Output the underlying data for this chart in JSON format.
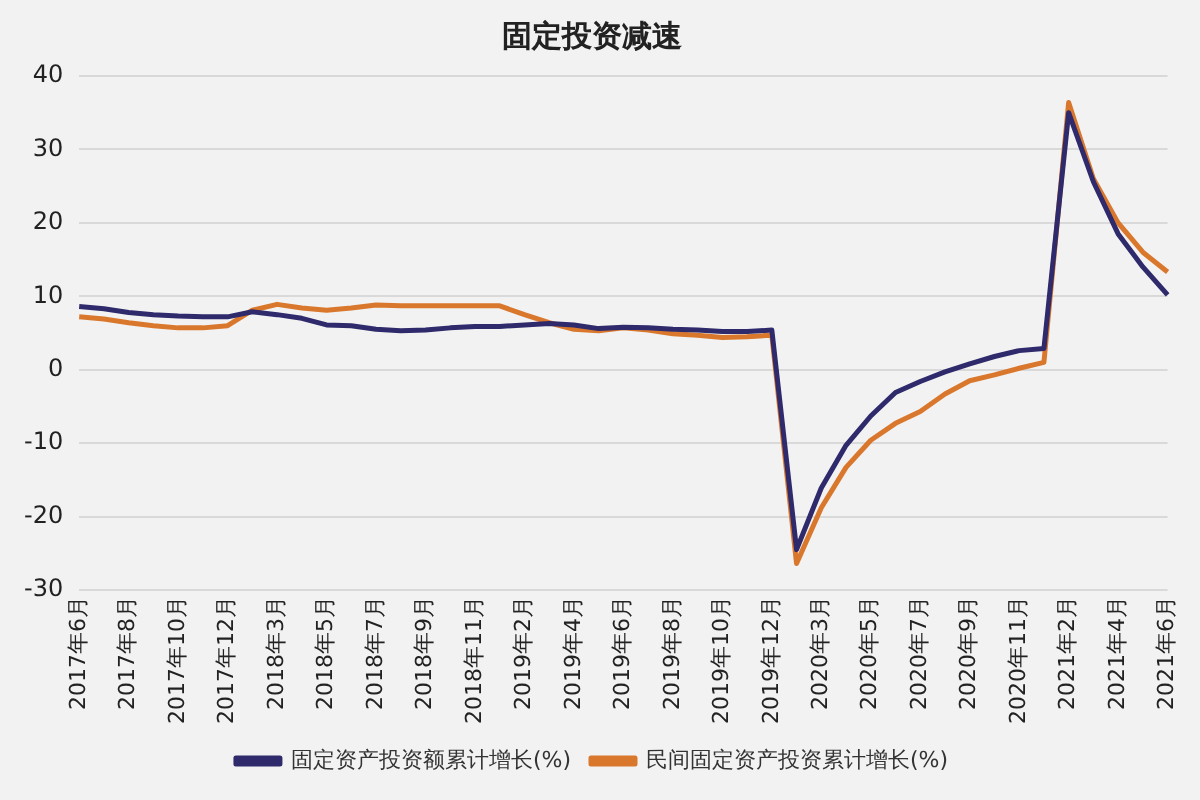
{
  "chart_data": {
    "type": "line",
    "title": "固定投资减速",
    "categories": [
      "2017年6月",
      null,
      "2017年8月",
      null,
      "2017年10月",
      null,
      "2017年12月",
      null,
      "2018年3月",
      null,
      "2018年5月",
      null,
      "2018年7月",
      null,
      "2018年9月",
      null,
      "2018年11月",
      null,
      "2019年2月",
      null,
      "2019年4月",
      null,
      "2019年6月",
      null,
      "2019年8月",
      null,
      "2019年10月",
      null,
      "2019年12月",
      null,
      "2020年3月",
      null,
      "2020年5月",
      null,
      "2020年7月",
      null,
      "2020年9月",
      null,
      "2020年11月",
      null,
      "2021年2月",
      null,
      "2021年4月",
      null,
      "2021年6月"
    ],
    "series": [
      {
        "name": "固定资产投资额累计增长(%)",
        "color": "#2e2a6b",
        "values": [
          8.6,
          8.3,
          7.8,
          7.5,
          7.3,
          7.2,
          7.2,
          7.9,
          7.5,
          7.0,
          6.1,
          6.0,
          5.5,
          5.3,
          5.4,
          5.7,
          5.9,
          5.9,
          6.1,
          6.3,
          6.1,
          5.6,
          5.8,
          5.7,
          5.5,
          5.4,
          5.2,
          5.2,
          5.4,
          -24.5,
          -16.1,
          -10.3,
          -6.3,
          -3.1,
          -1.6,
          -0.3,
          0.8,
          1.8,
          2.6,
          2.9,
          35,
          25.6,
          18.5,
          14,
          10.2
        ]
      },
      {
        "name": "民间固定资产投资累计增长(%)",
        "color": "#d9782d",
        "values": [
          7.2,
          6.9,
          6.4,
          6.0,
          5.7,
          5.7,
          6.0,
          8.1,
          8.9,
          8.4,
          8.1,
          8.4,
          8.8,
          8.7,
          8.7,
          8.7,
          8.7,
          8.7,
          7.5,
          6.4,
          5.5,
          5.3,
          5.7,
          5.4,
          4.9,
          4.7,
          4.4,
          4.5,
          4.7,
          -26.4,
          -18.8,
          -13.3,
          -9.6,
          -7.3,
          -5.7,
          -3.3,
          -1.5,
          -0.7,
          0.2,
          1.0,
          36.4,
          26,
          20,
          16,
          13.3
        ]
      }
    ],
    "ylim": [
      -30,
      40
    ],
    "yticks": [
      -30,
      -20,
      -10,
      0,
      10,
      20,
      30,
      40
    ],
    "grid": "y",
    "legend": "bottom",
    "marker": "none",
    "line_style": "solid"
  }
}
